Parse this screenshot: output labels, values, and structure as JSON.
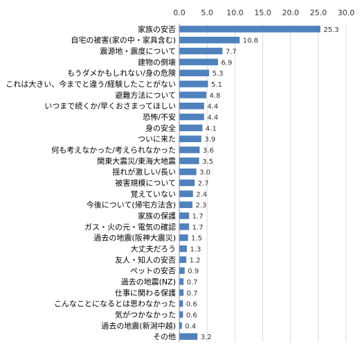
{
  "chart_data": {
    "type": "bar",
    "orientation": "horizontal",
    "title": "",
    "xlabel": "",
    "ylabel": "",
    "xlim": [
      0,
      30
    ],
    "x_ticks": [
      "0.0",
      "5.0",
      "10.0",
      "15.0",
      "20.0",
      "25.0",
      "30.0"
    ],
    "x_axis_position": "top",
    "grid": true,
    "legend": "none",
    "bar_color": "#4f81bd",
    "categories": [
      "家族の安否",
      "自宅の被害(家の中・家具含む)",
      "震源地・震度について",
      "建物の倒壊",
      "もうダメかもしれない/身の危険",
      "これは大きい、今までと違う/経験したことがない",
      "避難方法について",
      "いつまで続くか/早くおさまってほしい",
      "恐怖/不安",
      "身の安全",
      "ついに来た",
      "何も考えなかった/考えられなかった",
      "関東大震災/東海大地震",
      "揺れが激しい/長い",
      "被害規模について",
      "覚えていない",
      "今後について(帰宅方法含)",
      "家族の保護",
      "ガス・火の元・電気の確認",
      "過去の地震(阪神大震災)",
      "大丈夫だろう",
      "友人・知人の安否",
      "ペットの安否",
      "過去の地震(NZ)",
      "仕事に関わる保護",
      "こんなことになるとは思わなかった",
      "気がつかなかった",
      "過去の地震(新潟中越)",
      "その他"
    ],
    "values": [
      25.3,
      10.8,
      7.7,
      6.9,
      5.3,
      5.1,
      4.8,
      4.4,
      4.4,
      4.1,
      3.9,
      3.6,
      3.5,
      3.0,
      2.7,
      2.4,
      2.3,
      1.7,
      1.7,
      1.5,
      1.3,
      1.2,
      0.9,
      0.7,
      0.7,
      0.6,
      0.6,
      0.4,
      3.2
    ],
    "value_labels": [
      "25.3",
      "10.8",
      "7.7",
      "6.9",
      "5.3",
      "5.1",
      "4.8",
      "4.4",
      "4.4",
      "4.1",
      "3.9",
      "3.6",
      "3.5",
      "3.0",
      "2.7",
      "2.4",
      "2.3",
      "1.7",
      "1.7",
      "1.5",
      "1.3",
      "1.2",
      "0.9",
      "0.7",
      "0.7",
      "0.6",
      "0.6",
      "0.4",
      "3.2"
    ]
  }
}
